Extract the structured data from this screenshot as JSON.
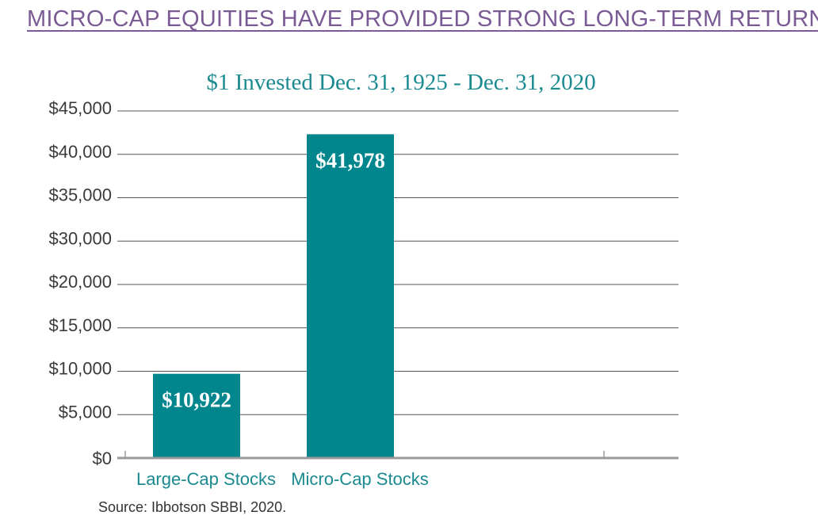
{
  "heading": "MICRO-CAP EQUITIES HAVE PROVIDED STRONG LONG-TERM RETURNS",
  "colors": {
    "heading": "#7a5a94",
    "bar": "#00868c",
    "title": "#1a8a90",
    "grid": "#555555",
    "axis": "#9a9a9a"
  },
  "chart_data": {
    "type": "bar",
    "title": "$1 Invested Dec. 31, 1925 - Dec. 31, 2020",
    "xlabel": "",
    "ylabel": "",
    "categories": [
      "Large-Cap Stocks",
      "Micro-Cap  Stocks"
    ],
    "values": [
      10922,
      41978
    ],
    "data_labels": [
      "$10,922",
      "$41,978"
    ],
    "ytick_labels": [
      "$0",
      "$5,000",
      "$10,000",
      "$15,000",
      "$20,000",
      "$30,000",
      "$35,000",
      "$40,000",
      "$45,000"
    ],
    "ylim": [
      0,
      45000
    ],
    "grid": true,
    "legend": "none"
  },
  "source": "Source:  Ibbotson SBBI, 2020."
}
